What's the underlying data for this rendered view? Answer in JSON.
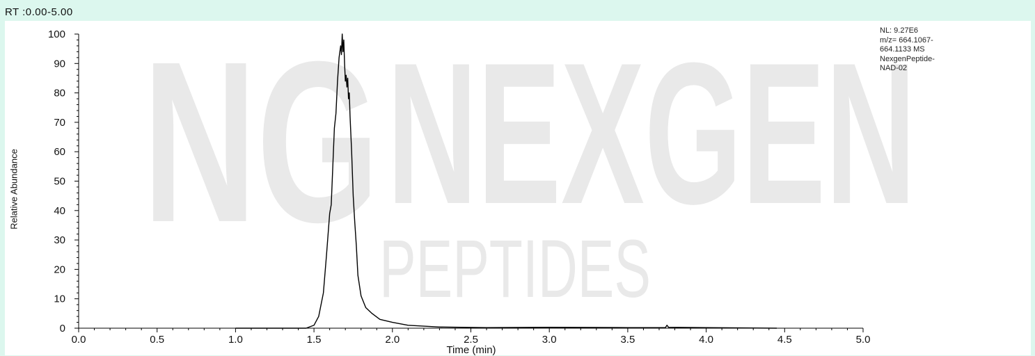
{
  "header": {
    "rt_range": "RT :0.00-5.00"
  },
  "info": {
    "lines": [
      "NL: 9.27E6",
      "m/z= 664.1067-",
      "664.1133 MS",
      "NexgenPeptide-",
      "NAD-02"
    ]
  },
  "watermark": {
    "brand": "NEXGEN",
    "sub": "PEPTIDES",
    "monogram": "NG"
  },
  "colors": {
    "background": "#dcf7ee",
    "plot_bg": "#ffffff",
    "trace": "#000000",
    "watermark": "#e9e9e9"
  },
  "chart_data": {
    "type": "line",
    "title": "",
    "xlabel": "Time (min)",
    "ylabel": "Relative Abundance",
    "xlim": [
      0.0,
      5.0
    ],
    "ylim": [
      0,
      100
    ],
    "xticks": [
      "0.0",
      "0.5",
      "1.0",
      "1.5",
      "2.0",
      "2.5",
      "3.0",
      "3.5",
      "4.0",
      "4.5",
      "5.0"
    ],
    "yticks": [
      "0",
      "10",
      "20",
      "30",
      "40",
      "50",
      "60",
      "70",
      "80",
      "90",
      "100"
    ],
    "grid": false,
    "series": [
      {
        "x": [
          1.0,
          1.45,
          1.5,
          1.53,
          1.56,
          1.58,
          1.6,
          1.61,
          1.62,
          1.63,
          1.64,
          1.65,
          1.66,
          1.67,
          1.675,
          1.68,
          1.685,
          1.69,
          1.695,
          1.7,
          1.705,
          1.71,
          1.715,
          1.72,
          1.725,
          1.73,
          1.74,
          1.75,
          1.76,
          1.77,
          1.78,
          1.8,
          1.83,
          1.87,
          1.92,
          2.0,
          2.1,
          2.3,
          2.6,
          3.0,
          3.5,
          3.74,
          3.75,
          3.76,
          4.0,
          4.45
        ],
        "y": [
          0,
          0,
          1,
          4,
          12,
          25,
          39,
          42,
          55,
          68,
          73,
          84,
          92,
          96,
          93,
          100,
          94,
          98,
          90,
          84,
          86,
          82,
          85,
          78,
          80,
          72,
          60,
          45,
          36,
          28,
          18,
          11,
          7,
          5,
          3,
          2,
          1,
          0.4,
          0.2,
          0.3,
          0.2,
          0.2,
          1,
          0.3,
          0.2,
          0
        ]
      }
    ]
  }
}
